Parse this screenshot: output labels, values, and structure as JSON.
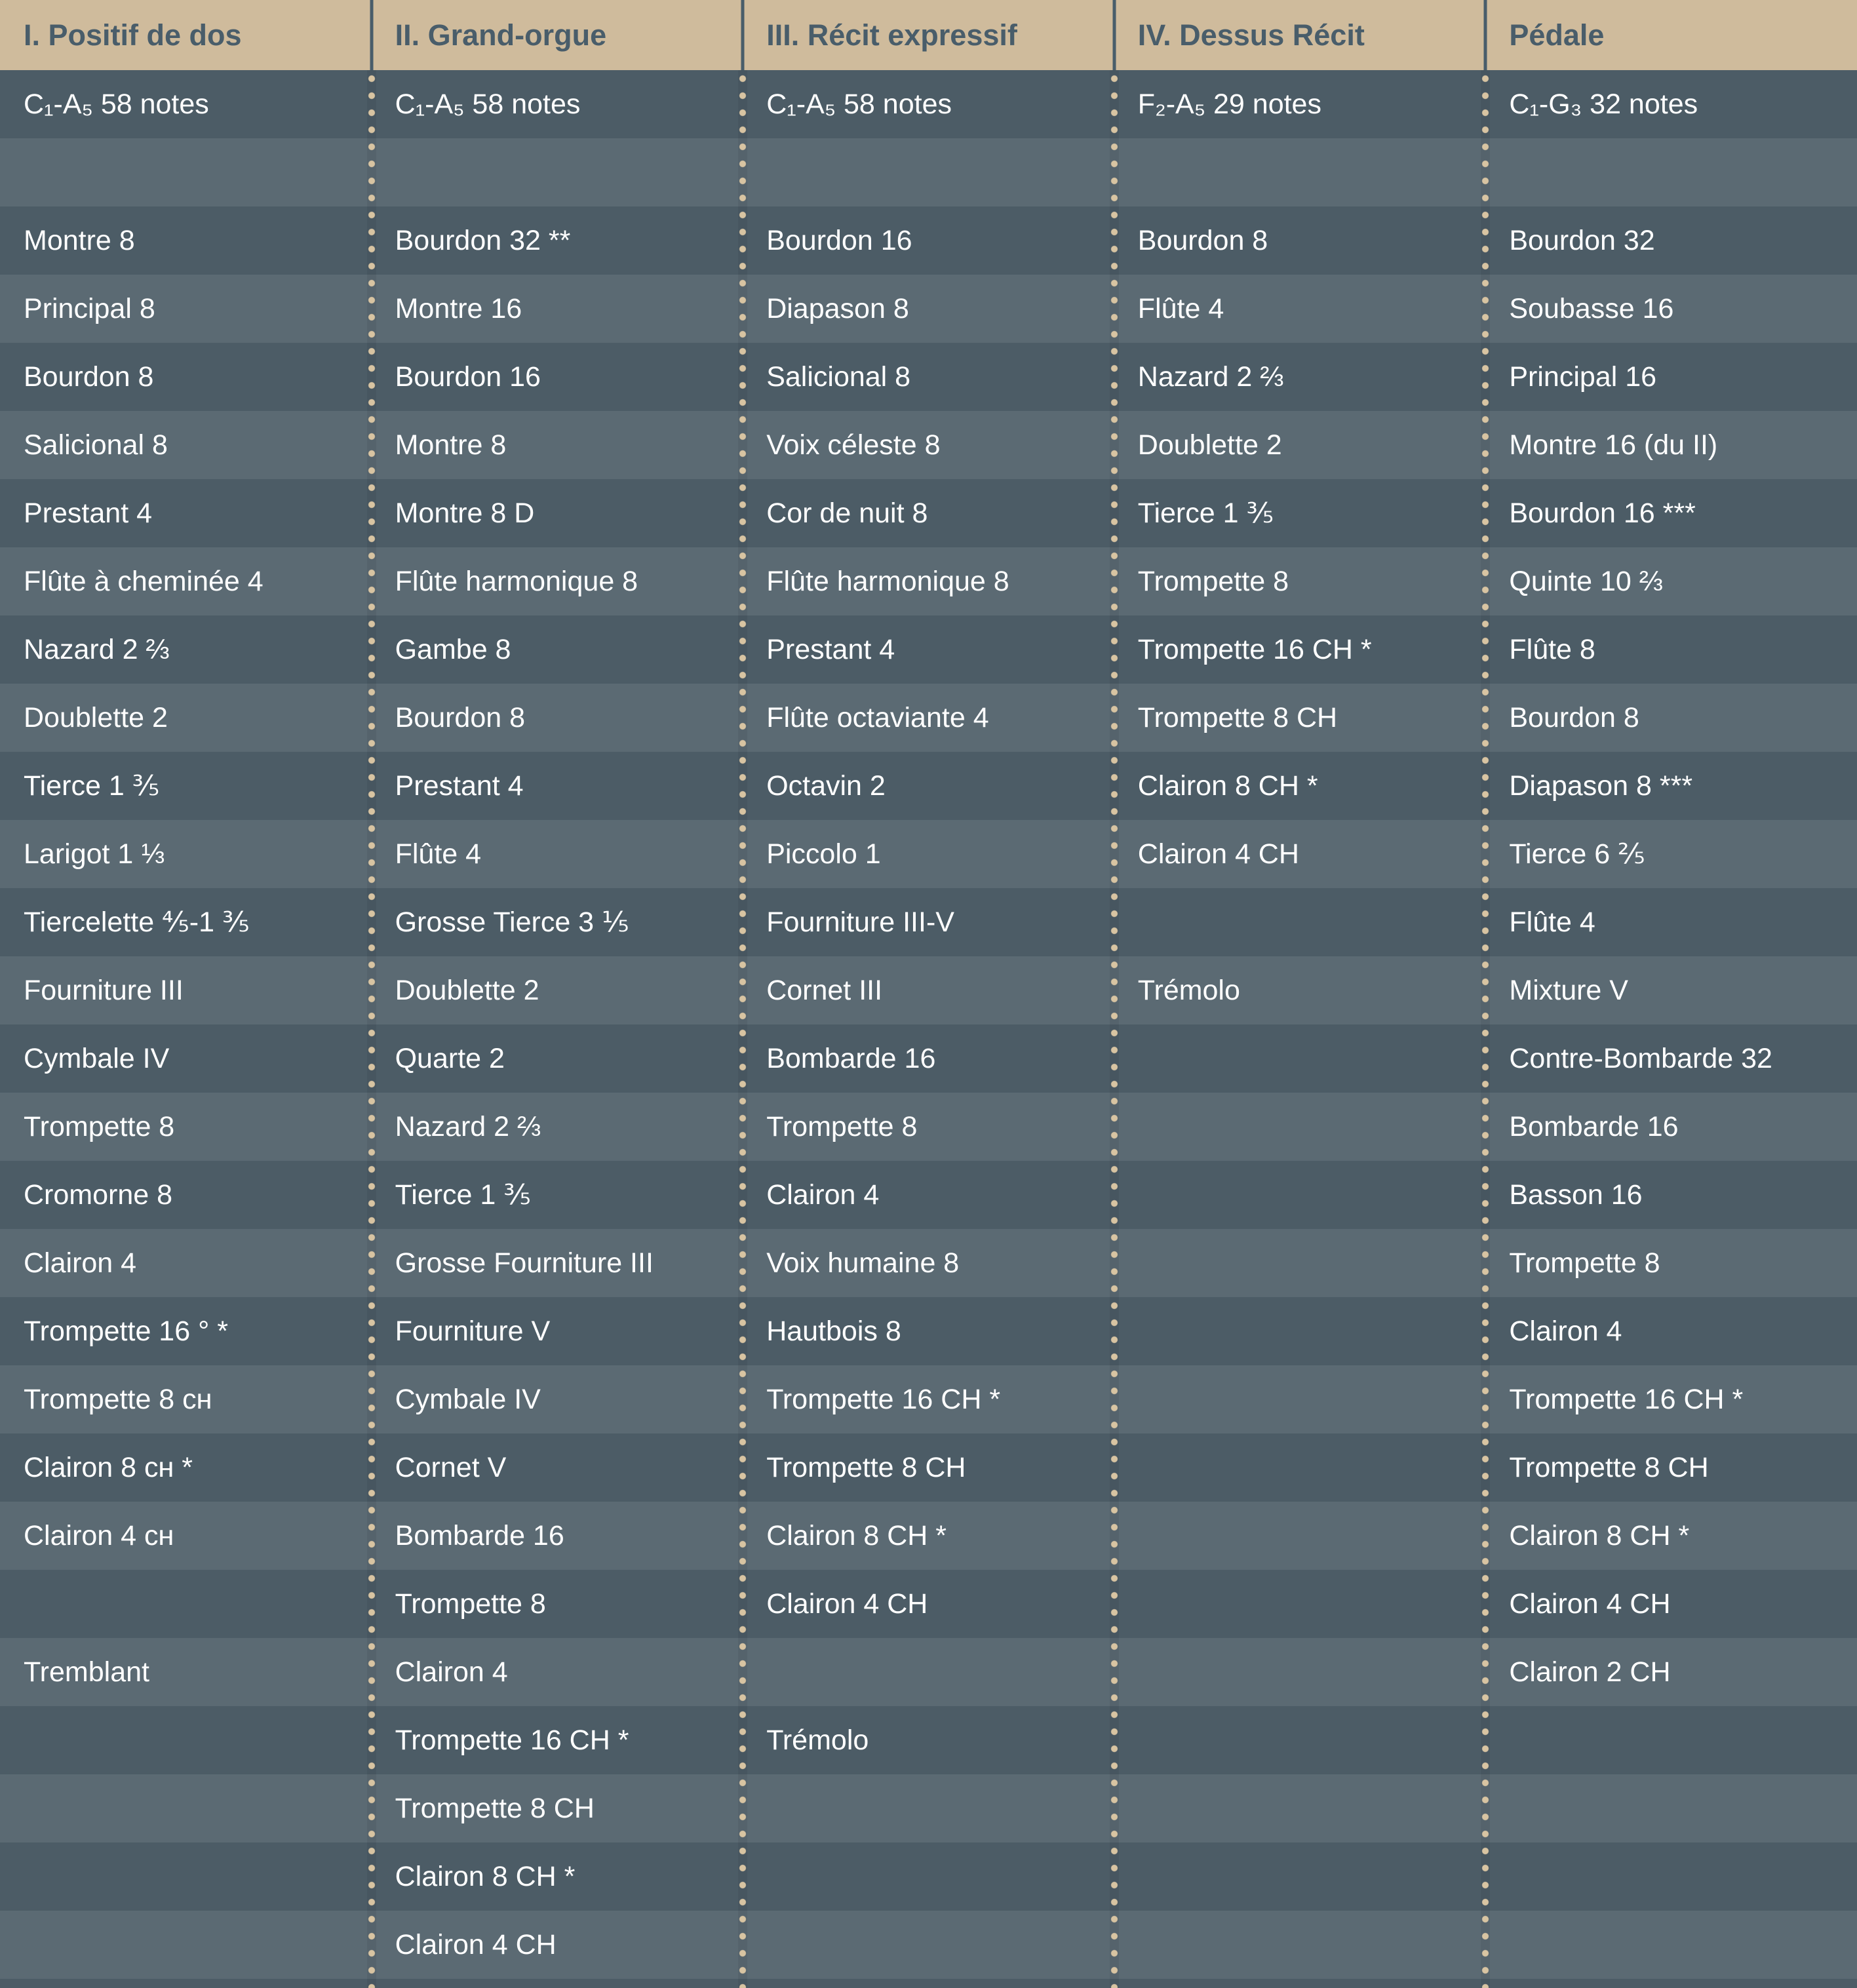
{
  "colors": {
    "header_bg": "#cfbb9c",
    "header_text": "#495d6a",
    "row_dark": "#4c5c66",
    "row_light": "#5b6a73",
    "dot": "#d8c4a2",
    "cell_text": "#ffffff"
  },
  "table": {
    "columns": [
      {
        "header": "I. Positif de dos",
        "rows": [
          "C₁-A₅ 58 notes",
          "",
          "Montre 8",
          "Principal 8",
          "Bourdon 8",
          "Salicional 8",
          "Prestant 4",
          "Flûte à cheminée 4",
          "Nazard 2 ⅔",
          "Doublette 2",
          "Tierce 1 ⅗",
          "Larigot 1 ⅓",
          "Tiercelette ⅘-1 ⅗",
          "Fourniture III",
          "Cymbale IV",
          "Trompette 8",
          "Cromorne 8",
          "Clairon 4",
          "Trompette 16 ° *",
          "Trompette 8 ᴄʜ",
          "Clairon 8 ᴄʜ *",
          "Clairon 4 ᴄʜ",
          "",
          "Tremblant",
          "",
          "",
          "",
          ""
        ]
      },
      {
        "header": "II. Grand-orgue",
        "rows": [
          "C₁-A₅ 58 notes",
          "",
          "Bourdon 32 **",
          "Montre 16",
          "Bourdon 16",
          "Montre 8",
          "Montre 8 D",
          "Flûte harmonique 8",
          "Gambe 8",
          "Bourdon 8",
          "Prestant 4",
          "Flûte 4",
          "Grosse Tierce 3 ⅕",
          "Doublette 2",
          "Quarte 2",
          "Nazard 2 ⅔",
          "Tierce 1 ⅗",
          "Grosse Fourniture III",
          "Fourniture V",
          "Cymbale IV",
          "Cornet V",
          "Bombarde 16",
          "Trompette 8",
          "Clairon 4",
          "Trompette 16 CH *",
          "Trompette 8 CH",
          "Clairon 8 CH *",
          "Clairon 4 CH"
        ]
      },
      {
        "header": "III. Récit expressif",
        "rows": [
          "C₁-A₅ 58 notes",
          "",
          "Bourdon 16",
          "Diapason 8",
          "Salicional 8",
          "Voix céleste 8",
          "Cor de nuit 8",
          "Flûte harmonique 8",
          "Prestant 4",
          "Flûte octaviante 4",
          "Octavin 2",
          "Piccolo 1",
          "Fourniture III-V",
          "Cornet III",
          "Bombarde 16",
          "Trompette 8",
          "Clairon 4",
          "Voix humaine 8",
          "Hautbois 8",
          "Trompette 16 CH *",
          "Trompette 8 CH",
          "Clairon 8 CH *",
          "Clairon 4 CH",
          "",
          "Trémolo",
          "",
          "",
          ""
        ]
      },
      {
        "header": "IV. Dessus Récit",
        "rows": [
          "F₂-A₅ 29 notes",
          "",
          "Bourdon 8",
          "Flûte 4",
          "Nazard 2 ⅔",
          "Doublette 2",
          "Tierce 1 ⅗",
          "Trompette 8",
          "Trompette 16 CH *",
          "Trompette 8 CH",
          "Clairon 8 CH *",
          "Clairon 4 CH",
          "",
          "Trémolo",
          "",
          "",
          "",
          "",
          "",
          "",
          "",
          "",
          "",
          "",
          "",
          "",
          "",
          ""
        ]
      },
      {
        "header": "Pédale",
        "rows": [
          "C₁-G₃ 32 notes",
          "",
          "Bourdon 32",
          "Soubasse 16",
          "Principal 16",
          "Montre 16 (du II)",
          "Bourdon 16 ***",
          "Quinte 10 ⅔",
          "Flûte 8",
          "Bourdon 8",
          "Diapason 8 ***",
          "Tierce 6 ⅖",
          "Flûte 4",
          "Mixture V",
          "Contre-Bombarde 32",
          "Bombarde 16",
          "Basson 16",
          "Trompette 8",
          "Clairon 4",
          "Trompette 16 CH *",
          "Trompette 8 CH",
          "Clairon 8 CH *",
          "Clairon 4 CH",
          "Clairon 2 CH",
          "",
          "",
          "",
          ""
        ]
      }
    ]
  }
}
